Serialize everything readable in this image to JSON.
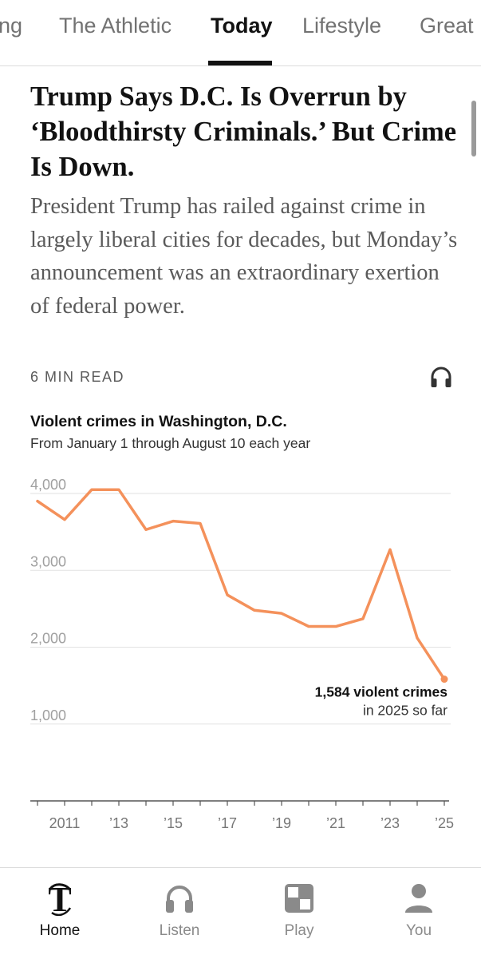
{
  "topnav": {
    "tabs": [
      {
        "label": "ng",
        "active": false
      },
      {
        "label": "The Athletic",
        "active": false
      },
      {
        "label": "Today",
        "active": true
      },
      {
        "label": "Lifestyle",
        "active": false
      },
      {
        "label": "Great",
        "active": false
      }
    ]
  },
  "article": {
    "headline": "Trump Says D.C. Is Overrun by ‘Bloodthirsty Criminals.’ But Crime Is Down.",
    "summary": "President Trump has railed against crime in largely liberal cities for decades, but Monday’s announcement was an extraordinary exertion of federal power.",
    "read_time": "6 MIN READ",
    "listen_icon": "headphones-icon"
  },
  "chart_data": {
    "type": "line",
    "title": "Violent crimes in Washington, D.C.",
    "subtitle": "From January 1 through August 10 each year",
    "x": [
      2010,
      2011,
      2012,
      2013,
      2014,
      2015,
      2016,
      2017,
      2018,
      2019,
      2020,
      2021,
      2022,
      2023,
      2024,
      2025
    ],
    "values": [
      3900,
      3660,
      4050,
      4050,
      3530,
      3640,
      3610,
      2680,
      2480,
      2440,
      2270,
      2270,
      2370,
      3270,
      2120,
      1584
    ],
    "x_tick_labels": [
      "2011",
      "’13",
      "’15",
      "’17",
      "’19",
      "’21",
      "’23",
      "’25"
    ],
    "x_tick_values": [
      2011,
      2013,
      2015,
      2017,
      2019,
      2021,
      2023,
      2025
    ],
    "y_tick_labels": [
      "4,000",
      "3,000",
      "2,000",
      "1,000"
    ],
    "y_tick_values": [
      4000,
      3000,
      2000,
      1000
    ],
    "ylim": [
      0,
      4000
    ],
    "xlim": [
      2010,
      2025
    ],
    "color": "#f4915b",
    "annotation": {
      "value_label": "1,584 violent crimes",
      "note": "in 2025 so far"
    },
    "grid": true
  },
  "bottomnav": {
    "items": [
      {
        "label": "Home",
        "icon": "nyt-logo-icon",
        "active": true
      },
      {
        "label": "Listen",
        "icon": "headphones-icon",
        "active": false
      },
      {
        "label": "Play",
        "icon": "play-grid-icon",
        "active": false
      },
      {
        "label": "You",
        "icon": "user-icon",
        "active": false
      }
    ]
  }
}
